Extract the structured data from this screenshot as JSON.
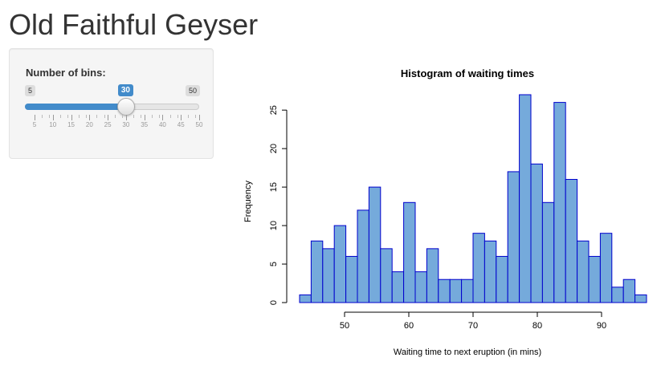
{
  "app": {
    "title": "Old Faithful Geyser"
  },
  "sidebar": {
    "bins_label": "Number of bins:",
    "slider": {
      "min_label": "5",
      "max_label": "50",
      "value_label": "30",
      "min": 5,
      "max": 50,
      "value": 30,
      "tick_labels": [
        "5",
        "10",
        "15",
        "20",
        "25",
        "30",
        "35",
        "40",
        "45",
        "50"
      ]
    }
  },
  "colors": {
    "accent": "#428bca",
    "bar_fill": "#75aadb",
    "bar_stroke": "#0000cd"
  },
  "chart_data": {
    "type": "bar",
    "title": "Histogram of waiting times",
    "xlabel": "Waiting time to next eruption (in mins)",
    "ylabel": "Frequency",
    "x_ticks": [
      "50",
      "60",
      "70",
      "80",
      "90"
    ],
    "y_ticks": [
      "0",
      "5",
      "10",
      "15",
      "20",
      "25"
    ],
    "xlim": [
      43,
      96
    ],
    "ylim": [
      0,
      27
    ],
    "bins": [
      {
        "x0": 43.0,
        "x1": 44.8,
        "count": 1
      },
      {
        "x0": 44.8,
        "x1": 46.6,
        "count": 8
      },
      {
        "x0": 46.6,
        "x1": 48.4,
        "count": 7
      },
      {
        "x0": 48.4,
        "x1": 50.2,
        "count": 10
      },
      {
        "x0": 50.2,
        "x1": 52.0,
        "count": 6
      },
      {
        "x0": 52.0,
        "x1": 53.8,
        "count": 12
      },
      {
        "x0": 53.8,
        "x1": 55.6,
        "count": 15
      },
      {
        "x0": 55.6,
        "x1": 57.4,
        "count": 7
      },
      {
        "x0": 57.4,
        "x1": 59.2,
        "count": 4
      },
      {
        "x0": 59.2,
        "x1": 61.0,
        "count": 13
      },
      {
        "x0": 61.0,
        "x1": 62.8,
        "count": 4
      },
      {
        "x0": 62.8,
        "x1": 64.6,
        "count": 7
      },
      {
        "x0": 64.6,
        "x1": 66.4,
        "count": 3
      },
      {
        "x0": 66.4,
        "x1": 68.2,
        "count": 3
      },
      {
        "x0": 68.2,
        "x1": 70.0,
        "count": 3
      },
      {
        "x0": 70.0,
        "x1": 71.8,
        "count": 9
      },
      {
        "x0": 71.8,
        "x1": 73.6,
        "count": 8
      },
      {
        "x0": 73.6,
        "x1": 75.4,
        "count": 6
      },
      {
        "x0": 75.4,
        "x1": 77.2,
        "count": 17
      },
      {
        "x0": 77.2,
        "x1": 79.0,
        "count": 27
      },
      {
        "x0": 79.0,
        "x1": 80.8,
        "count": 18
      },
      {
        "x0": 80.8,
        "x1": 82.6,
        "count": 13
      },
      {
        "x0": 82.6,
        "x1": 84.4,
        "count": 26
      },
      {
        "x0": 84.4,
        "x1": 86.2,
        "count": 16
      },
      {
        "x0": 86.2,
        "x1": 88.0,
        "count": 8
      },
      {
        "x0": 88.0,
        "x1": 89.8,
        "count": 6
      },
      {
        "x0": 89.8,
        "x1": 91.6,
        "count": 9
      },
      {
        "x0": 91.6,
        "x1": 93.4,
        "count": 2
      },
      {
        "x0": 93.4,
        "x1": 95.2,
        "count": 3
      },
      {
        "x0": 95.2,
        "x1": 97.0,
        "count": 1
      }
    ]
  }
}
